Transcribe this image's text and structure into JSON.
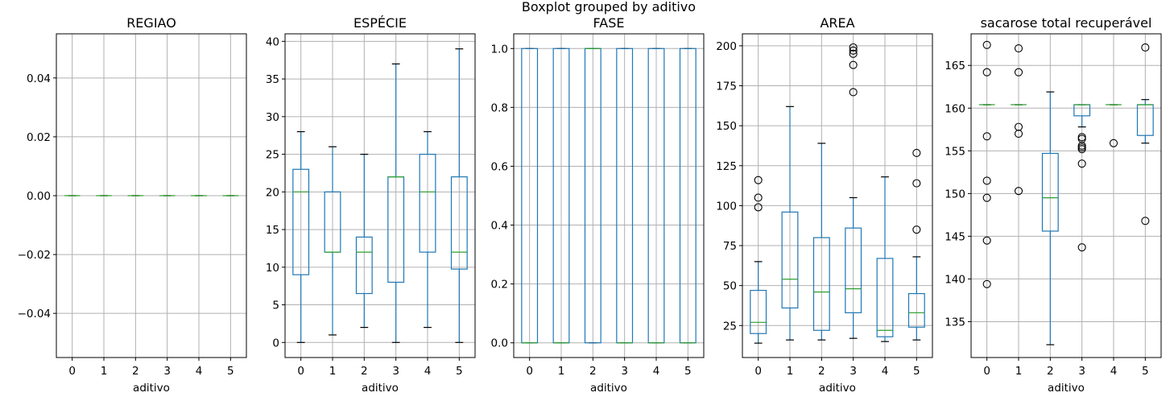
{
  "figure": {
    "suptitle": "Boxplot grouped by aditivo"
  },
  "chart_data": [
    {
      "type": "boxplot",
      "title": "REGIAO",
      "xlabel": "aditivo",
      "ylabel": "",
      "categories": [
        "0",
        "1",
        "2",
        "3",
        "4",
        "5"
      ],
      "ylim": [
        -0.055,
        0.055
      ],
      "yticks": [
        -0.04,
        -0.02,
        0.0,
        0.02,
        0.04
      ],
      "ytick_labels": [
        "−0.04",
        "−0.02",
        "0.00",
        "0.02",
        "0.04"
      ],
      "grid": true,
      "boxes": [
        {
          "whislo": 0,
          "q1": 0,
          "med": 0,
          "q3": 0,
          "whishi": 0,
          "fliers": []
        },
        {
          "whislo": 0,
          "q1": 0,
          "med": 0,
          "q3": 0,
          "whishi": 0,
          "fliers": []
        },
        {
          "whislo": 0,
          "q1": 0,
          "med": 0,
          "q3": 0,
          "whishi": 0,
          "fliers": []
        },
        {
          "whislo": 0,
          "q1": 0,
          "med": 0,
          "q3": 0,
          "whishi": 0,
          "fliers": []
        },
        {
          "whislo": 0,
          "q1": 0,
          "med": 0,
          "q3": 0,
          "whishi": 0,
          "fliers": []
        },
        {
          "whislo": 0,
          "q1": 0,
          "med": 0,
          "q3": 0,
          "whishi": 0,
          "fliers": []
        }
      ]
    },
    {
      "type": "boxplot",
      "title": "ESPÉCIE",
      "xlabel": "aditivo",
      "ylabel": "",
      "categories": [
        "0",
        "1",
        "2",
        "3",
        "4",
        "5"
      ],
      "ylim": [
        -2.0,
        41.0
      ],
      "yticks": [
        0,
        5,
        10,
        15,
        20,
        25,
        30,
        35,
        40
      ],
      "ytick_labels": [
        "0",
        "5",
        "10",
        "15",
        "20",
        "25",
        "30",
        "35",
        "40"
      ],
      "grid": true,
      "boxes": [
        {
          "whislo": 0,
          "q1": 9,
          "med": 20,
          "q3": 23,
          "whishi": 28,
          "fliers": []
        },
        {
          "whislo": 1,
          "q1": 12,
          "med": 12,
          "q3": 20,
          "whishi": 26,
          "fliers": []
        },
        {
          "whislo": 2,
          "q1": 6.5,
          "med": 12,
          "q3": 14,
          "whishi": 25,
          "fliers": []
        },
        {
          "whislo": 0,
          "q1": 8,
          "med": 22,
          "q3": 22,
          "whishi": 37,
          "fliers": []
        },
        {
          "whislo": 2,
          "q1": 12,
          "med": 20,
          "q3": 25,
          "whishi": 28,
          "fliers": []
        },
        {
          "whislo": 0,
          "q1": 9.75,
          "med": 12,
          "q3": 22,
          "whishi": 39,
          "fliers": []
        }
      ]
    },
    {
      "type": "boxplot",
      "title": "FASE",
      "xlabel": "aditivo",
      "ylabel": "",
      "categories": [
        "0",
        "1",
        "2",
        "3",
        "4",
        "5"
      ],
      "ylim": [
        -0.05,
        1.05
      ],
      "yticks": [
        0.0,
        0.2,
        0.4,
        0.6,
        0.8,
        1.0
      ],
      "ytick_labels": [
        "0.0",
        "0.2",
        "0.4",
        "0.6",
        "0.8",
        "1.0"
      ],
      "grid": true,
      "boxes": [
        {
          "whislo": 0,
          "q1": 0,
          "med": 0,
          "q3": 1,
          "whishi": 1,
          "fliers": []
        },
        {
          "whislo": 0,
          "q1": 0,
          "med": 0,
          "q3": 1,
          "whishi": 1,
          "fliers": []
        },
        {
          "whislo": 0,
          "q1": 0,
          "med": 1,
          "q3": 1,
          "whishi": 1,
          "fliers": []
        },
        {
          "whislo": 0,
          "q1": 0,
          "med": 0,
          "q3": 1,
          "whishi": 1,
          "fliers": []
        },
        {
          "whislo": 0,
          "q1": 0,
          "med": 0,
          "q3": 1,
          "whishi": 1,
          "fliers": []
        },
        {
          "whislo": 0,
          "q1": 0,
          "med": 0,
          "q3": 1,
          "whishi": 1,
          "fliers": []
        }
      ]
    },
    {
      "type": "boxplot",
      "title": "AREA",
      "xlabel": "aditivo",
      "ylabel": "",
      "categories": [
        "0",
        "1",
        "2",
        "3",
        "4",
        "5"
      ],
      "ylim": [
        5.0,
        207.5
      ],
      "yticks": [
        25,
        50,
        75,
        100,
        125,
        150,
        175,
        200
      ],
      "ytick_labels": [
        "25",
        "50",
        "75",
        "100",
        "125",
        "150",
        "175",
        "200"
      ],
      "grid": true,
      "boxes": [
        {
          "whislo": 14,
          "q1": 20,
          "med": 27,
          "q3": 47,
          "whishi": 65,
          "fliers": [
            99,
            105,
            116
          ]
        },
        {
          "whislo": 16,
          "q1": 36,
          "med": 54,
          "q3": 96,
          "whishi": 162,
          "fliers": []
        },
        {
          "whislo": 16,
          "q1": 22,
          "med": 46,
          "q3": 80,
          "whishi": 139,
          "fliers": []
        },
        {
          "whislo": 17,
          "q1": 33,
          "med": 48,
          "q3": 86,
          "whishi": 105,
          "fliers": [
            171,
            188,
            195,
            197,
            199
          ]
        },
        {
          "whislo": 15,
          "q1": 18,
          "med": 22,
          "q3": 67,
          "whishi": 118,
          "fliers": []
        },
        {
          "whislo": 16,
          "q1": 24,
          "med": 33,
          "q3": 45,
          "whishi": 68,
          "fliers": [
            85,
            114,
            133
          ]
        }
      ]
    },
    {
      "type": "boxplot",
      "title": "sacarose total recuperável",
      "xlabel": "aditivo",
      "ylabel": "",
      "categories": [
        "0",
        "1",
        "2",
        "3",
        "4",
        "5"
      ],
      "ylim": [
        130.8,
        168.7
      ],
      "yticks": [
        135,
        140,
        145,
        150,
        155,
        160,
        165
      ],
      "ytick_labels": [
        "135",
        "140",
        "145",
        "150",
        "155",
        "160",
        "165"
      ],
      "grid": true,
      "boxes": [
        {
          "whislo": 160.4,
          "q1": 160.4,
          "med": 160.4,
          "q3": 160.4,
          "whishi": 160.4,
          "fliers": [
            139.4,
            144.5,
            149.5,
            151.5,
            156.7,
            164.2,
            167.4
          ]
        },
        {
          "whislo": 160.4,
          "q1": 160.4,
          "med": 160.4,
          "q3": 160.4,
          "whishi": 160.4,
          "fliers": [
            150.3,
            157.0,
            157.8,
            164.2,
            167.0
          ]
        },
        {
          "whislo": 132.3,
          "q1": 145.6,
          "med": 149.5,
          "q3": 154.7,
          "whishi": 161.9,
          "fliers": []
        },
        {
          "whislo": 157.8,
          "q1": 159.1,
          "med": 160.4,
          "q3": 160.4,
          "whishi": 160.4,
          "fliers": [
            143.7,
            153.5,
            155.2,
            155.4,
            155.6,
            156.4,
            156.6
          ]
        },
        {
          "whislo": 160.4,
          "q1": 160.4,
          "med": 160.4,
          "q3": 160.4,
          "whishi": 160.4,
          "fliers": [
            155.9
          ]
        },
        {
          "whislo": 155.9,
          "q1": 156.8,
          "med": 160.4,
          "q3": 160.4,
          "whishi": 161.0,
          "fliers": [
            146.8,
            167.1
          ]
        }
      ]
    }
  ]
}
